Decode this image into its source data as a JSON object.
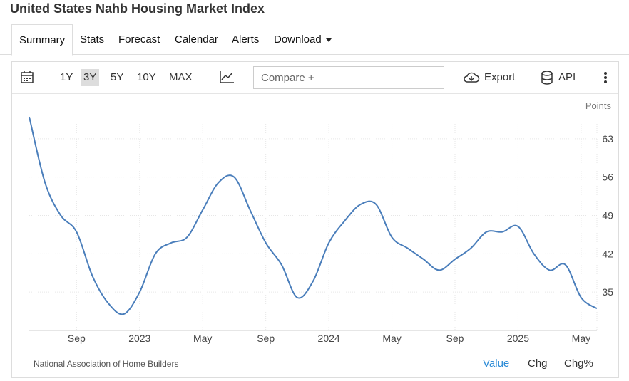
{
  "title": "United States Nahb Housing Market Index",
  "tabs": [
    {
      "label": "Summary",
      "active": true
    },
    {
      "label": "Stats"
    },
    {
      "label": "Forecast"
    },
    {
      "label": "Calendar"
    },
    {
      "label": "Alerts"
    },
    {
      "label": "Download"
    }
  ],
  "toolbar": {
    "ranges": [
      "1Y",
      "3Y",
      "5Y",
      "10Y",
      "MAX"
    ],
    "active_range": "3Y",
    "compare_placeholder": "Compare +",
    "export_label": "Export",
    "api_label": "API"
  },
  "chart_data": {
    "type": "line",
    "unit_label": "Points",
    "series": [
      {
        "color": "#4a7ebb",
        "points": [
          [
            "2022-06",
            67
          ],
          [
            "2022-07",
            55
          ],
          [
            "2022-08",
            49
          ],
          [
            "2022-09",
            46
          ],
          [
            "2022-10",
            38
          ],
          [
            "2022-11",
            33
          ],
          [
            "2022-12",
            31
          ],
          [
            "2023-01",
            35
          ],
          [
            "2023-02",
            42
          ],
          [
            "2023-03",
            44
          ],
          [
            "2023-04",
            45
          ],
          [
            "2023-05",
            50
          ],
          [
            "2023-06",
            55
          ],
          [
            "2023-07",
            56
          ],
          [
            "2023-08",
            50
          ],
          [
            "2023-09",
            44
          ],
          [
            "2023-10",
            40
          ],
          [
            "2023-11",
            34
          ],
          [
            "2023-12",
            37
          ],
          [
            "2024-01",
            44
          ],
          [
            "2024-02",
            48
          ],
          [
            "2024-03",
            51
          ],
          [
            "2024-04",
            51
          ],
          [
            "2024-05",
            45
          ],
          [
            "2024-06",
            43
          ],
          [
            "2024-07",
            41
          ],
          [
            "2024-08",
            39
          ],
          [
            "2024-09",
            41
          ],
          [
            "2024-10",
            43
          ],
          [
            "2024-11",
            46
          ],
          [
            "2024-12",
            46
          ],
          [
            "2025-01",
            47
          ],
          [
            "2025-02",
            42
          ],
          [
            "2025-03",
            39
          ],
          [
            "2025-04",
            40
          ],
          [
            "2025-05",
            34
          ],
          [
            "2025-06",
            32
          ]
        ]
      }
    ],
    "x_ticks": [
      {
        "label": "Sep",
        "date": "2022-09"
      },
      {
        "label": "2023",
        "date": "2023-01"
      },
      {
        "label": "May",
        "date": "2023-05"
      },
      {
        "label": "Sep",
        "date": "2023-09"
      },
      {
        "label": "2024",
        "date": "2024-01"
      },
      {
        "label": "May",
        "date": "2024-05"
      },
      {
        "label": "Sep",
        "date": "2024-09"
      },
      {
        "label": "2025",
        "date": "2025-01"
      },
      {
        "label": "May",
        "date": "2025-05"
      }
    ],
    "y_ticks": [
      35,
      42,
      49,
      56,
      63
    ],
    "x_range": [
      "2022-06",
      "2025-06"
    ],
    "y_range": [
      28,
      70
    ],
    "grid": true
  },
  "source": "National Association of Home Builders",
  "view_modes": [
    {
      "label": "Value",
      "active": true
    },
    {
      "label": "Chg"
    },
    {
      "label": "Chg%"
    }
  ]
}
